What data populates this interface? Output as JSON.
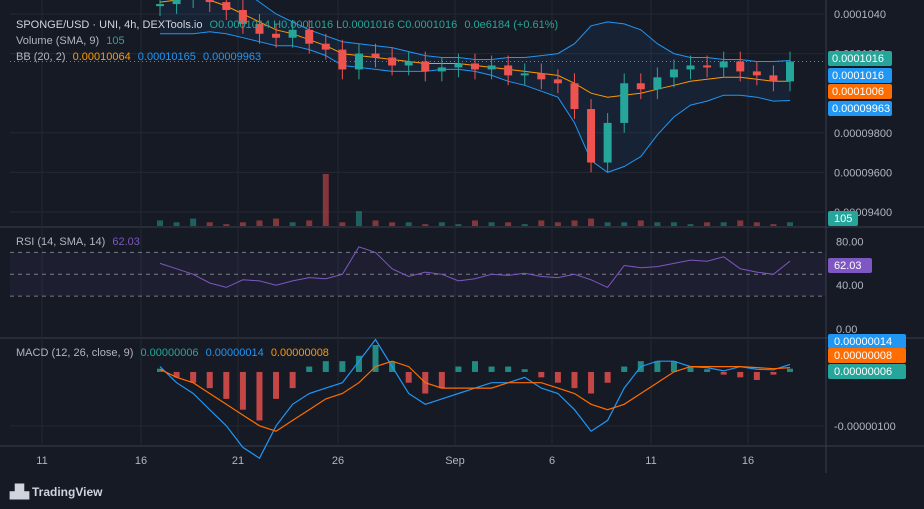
{
  "header": {
    "symbol": "SPONGE/USD · UNI, 4h, DEXTools.io",
    "ohlc": "O0.0001014 H0.0001016 L0.0001016 C0.0001016",
    "change": "0.0e6184 (+0.61%)",
    "volume_label": "Volume (SMA, 9)",
    "volume_value": "105",
    "bb_label": "BB (20, 2)",
    "bb_basis": "0.00010064",
    "bb_upper": "0.00010165",
    "bb_lower": "0.00009963"
  },
  "rsi_legend": {
    "label": "RSI (14, SMA, 14)",
    "value": "62.03"
  },
  "macd_legend": {
    "label": "MACD (12, 26, close, 9)",
    "hist": "0.00000006",
    "macd": "0.00000014",
    "signal": "0.00000008"
  },
  "colors": {
    "bg": "#161a25",
    "up": "#26a69a",
    "down": "#ef5350",
    "bb": "#2196f3",
    "basis": "#ff9800",
    "rsi": "#7e57c2",
    "macd": "#2196f3",
    "signal": "#ff6d00"
  },
  "price_badges": [
    {
      "text": "0.0001016",
      "color": "#26a69a"
    },
    {
      "text": "0.0001016",
      "color": "#2196f3"
    },
    {
      "text": "0.0001006",
      "color": "#ff6d00"
    },
    {
      "text": "0.00009963",
      "color": "#2196f3"
    }
  ],
  "volume_badge": "105",
  "rsi_badge": "62.03",
  "macd_badges": [
    {
      "text": "0.00000014",
      "color": "#2196f3"
    },
    {
      "text": "0.00000008",
      "color": "#ff6d00"
    },
    {
      "text": "0.00000006",
      "color": "#26a69a"
    }
  ],
  "brand": "TradingView",
  "chart_data": [
    {
      "type": "candlestick",
      "y_ticks": [
        "0.0001040",
        "0.0001020",
        "0.00009800",
        "0.00009600",
        "0.00009400"
      ],
      "y_tick_values": [
        0.000104,
        0.000102,
        9.8e-05,
        9.6e-05,
        9.4e-05
      ],
      "ylim": [
        9.38e-05,
        0.0001042
      ],
      "x_ticks": [
        "11",
        "16",
        "21",
        "26",
        "Sep",
        "6",
        "11",
        "16"
      ],
      "candles_close": [
        0.0001045,
        0.0001048,
        0.0001052,
        0.0001046,
        0.0001042,
        0.0001035,
        0.000103,
        0.0001028,
        0.0001032,
        0.0001025,
        0.0001022,
        0.0001012,
        0.000102,
        0.0001018,
        0.0001014,
        0.0001016,
        0.0001011,
        0.0001013,
        0.0001015,
        0.0001012,
        0.0001014,
        0.0001009,
        0.000101,
        0.0001007,
        0.0001005,
        9.92e-05,
        9.65e-05,
        9.85e-05,
        0.0001005,
        0.0001002,
        0.0001008,
        0.0001012,
        0.0001014,
        0.0001013,
        0.0001016,
        0.0001011,
        0.0001009,
        0.0001006,
        0.0001016
      ],
      "bb_basis": [
        0.0001046,
        0.0001047,
        0.0001048,
        0.0001047,
        0.0001044,
        0.000104,
        0.0001036,
        0.0001032,
        0.000103,
        0.0001027,
        0.0001024,
        0.000102,
        0.0001019,
        0.0001018,
        0.0001017,
        0.0001016,
        0.0001015,
        0.0001015,
        0.0001015,
        0.0001014,
        0.0001013,
        0.0001012,
        0.0001011,
        0.000101,
        0.0001009,
        0.0001005,
        0.0001,
        9.98e-05,
        9.99e-05,
        0.0001,
        0.0001002,
        0.0001004,
        0.0001006,
        0.0001007,
        0.0001008,
        0.0001008,
        0.0001007,
        0.0001006,
        0.0001006
      ],
      "bb_upper": [
        0.0001062,
        0.0001064,
        0.0001066,
        0.0001063,
        0.0001058,
        0.0001052,
        0.0001046,
        0.000104,
        0.0001036,
        0.0001032,
        0.0001029,
        0.0001026,
        0.0001025,
        0.0001024,
        0.0001023,
        0.0001021,
        0.0001019,
        0.0001018,
        0.0001018,
        0.0001017,
        0.0001017,
        0.0001018,
        0.0001018,
        0.0001019,
        0.000102,
        0.0001025,
        0.0001034,
        0.0001036,
        0.0001035,
        0.0001032,
        0.0001025,
        0.000102,
        0.0001018,
        0.0001018,
        0.0001017,
        0.0001017,
        0.0001016,
        0.0001016,
        0.00010165
      ],
      "bb_lower": [
        0.000103,
        0.000103,
        0.000103,
        0.0001031,
        0.000103,
        0.0001028,
        0.0001026,
        0.0001024,
        0.0001024,
        0.0001022,
        0.0001019,
        0.0001014,
        0.0001013,
        0.0001012,
        0.0001011,
        0.0001011,
        0.0001011,
        0.0001012,
        0.0001012,
        0.0001011,
        0.0001009,
        0.0001006,
        0.0001004,
        0.0001001,
        9.98e-05,
        9.85e-05,
        9.66e-05,
        9.6e-05,
        9.63e-05,
        9.68e-05,
        9.79e-05,
        9.88e-05,
        9.94e-05,
        9.96e-05,
        9.99e-05,
        9.99e-05,
        9.98e-05,
        9.96e-05,
        9.963e-05
      ]
    },
    {
      "type": "bar",
      "name": "Volume",
      "values": [
        3,
        2,
        4,
        2,
        1,
        2,
        3,
        4,
        2,
        3,
        28,
        2,
        8,
        3,
        2,
        2,
        1,
        2,
        1,
        3,
        2,
        2,
        1,
        3,
        2,
        3,
        4,
        2,
        2,
        3,
        2,
        2,
        1,
        2,
        2,
        3,
        2,
        1,
        2
      ]
    },
    {
      "type": "line",
      "name": "RSI",
      "y_ticks": [
        "80.00",
        "40.00",
        "0.00"
      ],
      "y_tick_values": [
        80,
        40,
        0
      ],
      "ylim": [
        0,
        85
      ],
      "bands": [
        70,
        50,
        30
      ],
      "values": [
        60,
        55,
        50,
        42,
        38,
        45,
        44,
        40,
        44,
        47,
        46,
        50,
        75,
        70,
        55,
        48,
        52,
        50,
        44,
        46,
        50,
        49,
        51,
        48,
        47,
        50,
        45,
        38,
        58,
        56,
        57,
        60,
        63,
        62,
        66,
        55,
        52,
        50,
        62.03
      ]
    },
    {
      "type": "bar",
      "name": "MACD",
      "y_ticks": [
        "-0.00000100"
      ],
      "y_tick_values": [
        -1e-06
      ],
      "ylim": [
        -1.3e-06,
        5e-07
      ],
      "hist": [
        6e-08,
        -1e-07,
        -2e-07,
        -3e-07,
        -5e-07,
        -7e-07,
        -9e-07,
        -5e-07,
        -3e-07,
        1e-07,
        2e-07,
        2e-07,
        3e-07,
        5e-07,
        2e-07,
        -2e-07,
        -4e-07,
        -3e-07,
        1e-07,
        2e-07,
        1e-07,
        1e-07,
        5e-08,
        -1e-07,
        -2e-07,
        -3e-07,
        -4e-07,
        -2e-07,
        1e-07,
        2e-07,
        2e-07,
        2e-07,
        1e-07,
        5e-08,
        -5e-08,
        -1e-07,
        -1.5e-07,
        -5e-08,
        6e-08
      ],
      "macd": [
        1e-07,
        -2e-07,
        -4e-07,
        -7e-07,
        -1e-06,
        -1.4e-06,
        -1.6e-06,
        -1e-06,
        -6e-07,
        -4e-07,
        -3e-07,
        -2e-07,
        2e-07,
        6e-07,
        1e-07,
        -4e-07,
        -6e-07,
        -5e-07,
        -4e-07,
        -3e-07,
        -2e-07,
        -2e-07,
        -1e-07,
        -3e-07,
        -4e-07,
        -7e-07,
        -1.1e-06,
        -9e-07,
        -3e-07,
        1e-07,
        2e-07,
        2e-07,
        1e-07,
        8e-08,
        2e-08,
        1e-07,
        5e-08,
        4e-08,
        1.4e-07
      ],
      "signal": [
        5e-08,
        -1e-07,
        -2e-07,
        -4e-07,
        -6e-07,
        -8e-07,
        -1e-06,
        -1.1e-06,
        -9e-07,
        -7e-07,
        -5e-07,
        -4e-07,
        -2e-07,
        1e-07,
        2e-07,
        1e-07,
        -2e-07,
        -3e-07,
        -3e-07,
        -3e-07,
        -3e-07,
        -2e-07,
        -2e-07,
        -2e-07,
        -3e-07,
        -4e-07,
        -6e-07,
        -7e-07,
        -6e-07,
        -4e-07,
        -2e-07,
        0,
        1e-07,
        1e-07,
        1e-07,
        1e-07,
        8e-08,
        6e-08,
        8e-08
      ]
    }
  ]
}
